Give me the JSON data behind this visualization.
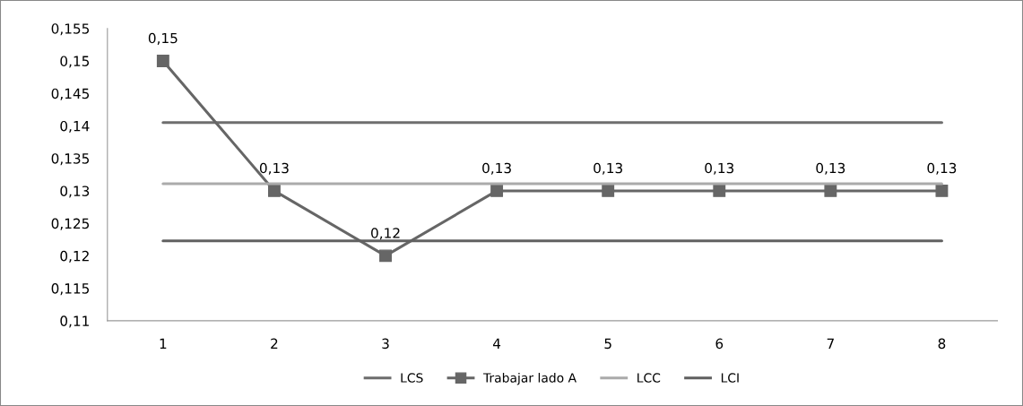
{
  "chart_data": {
    "type": "line",
    "categories": [
      "1",
      "2",
      "3",
      "4",
      "5",
      "6",
      "7",
      "8"
    ],
    "series": [
      {
        "name": "LCS",
        "color": "#6e6e6e",
        "values": [
          0.1405,
          0.1405,
          0.1405,
          0.1405,
          0.1405,
          0.1405,
          0.1405,
          0.1405
        ],
        "marker": "none"
      },
      {
        "name": "Trabajar lado A",
        "color": "#666666",
        "values": [
          0.15,
          0.13,
          0.12,
          0.13,
          0.13,
          0.13,
          0.13,
          0.13
        ],
        "marker": "square",
        "value_labels": [
          "0,15",
          "0,13",
          "0,12",
          "0,13",
          "0,13",
          "0,13",
          "0,13",
          "0,13"
        ]
      },
      {
        "name": "LCC",
        "color": "#ababab",
        "values": [
          0.1311,
          0.1311,
          0.1311,
          0.1311,
          0.1311,
          0.1311,
          0.1311,
          0.1311
        ],
        "marker": "none"
      },
      {
        "name": "LCI",
        "color": "#616161",
        "values": [
          0.1223,
          0.1223,
          0.1223,
          0.1223,
          0.1223,
          0.1223,
          0.1223,
          0.1223
        ],
        "marker": "none"
      }
    ],
    "ylim": [
      0.11,
      0.155
    ],
    "yticks": [
      {
        "value": 0.11,
        "label": "0,11"
      },
      {
        "value": 0.115,
        "label": "0,115"
      },
      {
        "value": 0.12,
        "label": "0,12"
      },
      {
        "value": 0.125,
        "label": "0,125"
      },
      {
        "value": 0.13,
        "label": "0,13"
      },
      {
        "value": 0.135,
        "label": "0,135"
      },
      {
        "value": 0.14,
        "label": "0,14"
      },
      {
        "value": 0.145,
        "label": "0,145"
      },
      {
        "value": 0.15,
        "label": "0,15"
      },
      {
        "value": 0.155,
        "label": "0,155"
      }
    ],
    "grid": false,
    "legend": "bottom",
    "line_style": "solid"
  }
}
